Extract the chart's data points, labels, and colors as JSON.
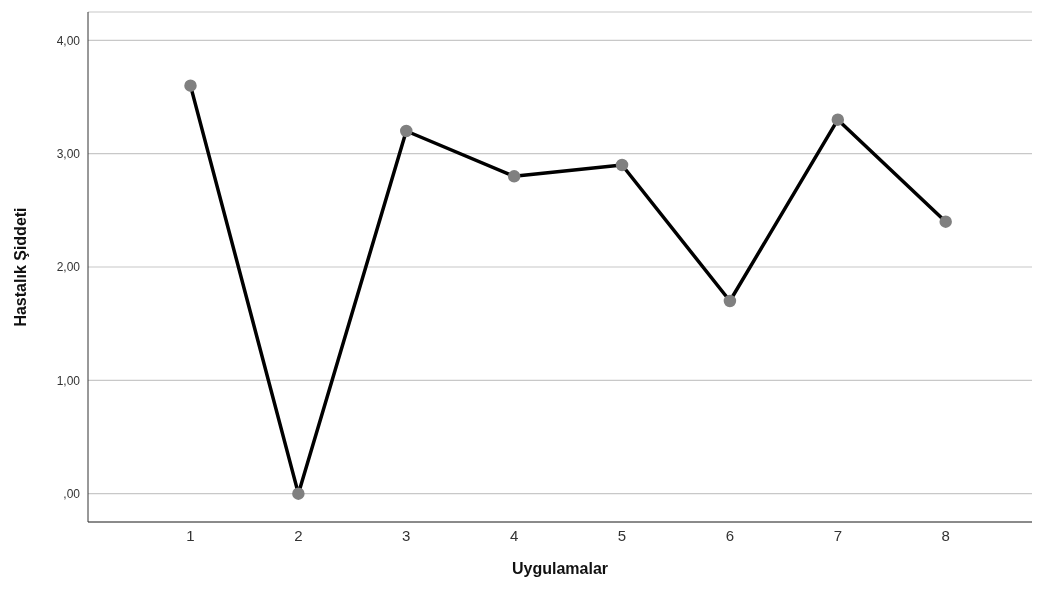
{
  "chart_data": {
    "type": "line",
    "xlabel": "Uygulamalar",
    "ylabel": "Hastalık  Şiddeti",
    "categories": [
      "1",
      "2",
      "3",
      "4",
      "5",
      "6",
      "7",
      "8"
    ],
    "series": [
      {
        "color": "#000000",
        "values": [
          3.6,
          0,
          3.2,
          2.8,
          2.9,
          1.7,
          3.3,
          2.4
        ]
      }
    ],
    "ylim": [
      -0.25,
      4.25
    ],
    "yticks": [
      {
        "value": 0,
        "label": ",00"
      },
      {
        "value": 1,
        "label": "1,00"
      },
      {
        "value": 2,
        "label": "2,00"
      },
      {
        "value": 3,
        "label": "3,00"
      },
      {
        "value": 4,
        "label": "4,00"
      }
    ],
    "grid": "y",
    "marker": "circle",
    "line_style": "solid",
    "legend": false
  }
}
